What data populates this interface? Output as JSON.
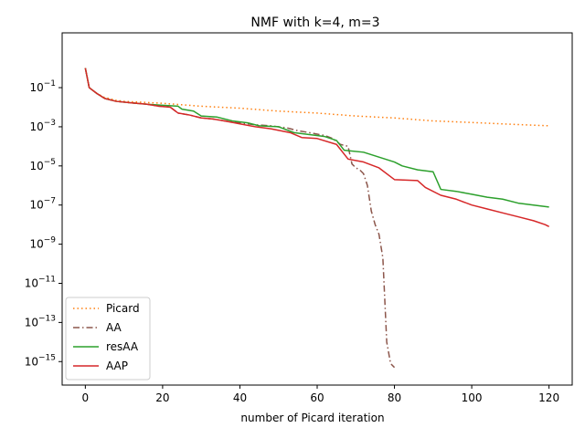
{
  "chart_data": {
    "type": "line",
    "title": "NMF with k=4, m=3",
    "xlabel": "number of Picard iteration",
    "ylabel": "",
    "xlim": [
      -6,
      126
    ],
    "ylim_log10": [
      -16.2,
      1.8
    ],
    "y_scale": "log",
    "grid": false,
    "legend_position": "lower-left",
    "x_ticks": [
      0,
      20,
      40,
      60,
      80,
      100,
      120
    ],
    "y_ticks": [
      {
        "exp": 1,
        "base": "10",
        "power": "−1"
      },
      {
        "exp": 3,
        "base": "10",
        "power": "−3"
      },
      {
        "exp": 5,
        "base": "10",
        "power": "−5"
      },
      {
        "exp": 7,
        "base": "10",
        "power": "−7"
      },
      {
        "exp": 9,
        "base": "10",
        "power": "−9"
      },
      {
        "exp": 11,
        "base": "10",
        "power": "−11"
      },
      {
        "exp": 13,
        "base": "10",
        "power": "−13"
      },
      {
        "exp": 15,
        "base": "10",
        "power": "−15"
      }
    ],
    "series": [
      {
        "name": "Picard",
        "color": "#ff7f0e",
        "dash": "dotted",
        "points": [
          [
            0,
            0.0
          ],
          [
            1,
            -1.0
          ],
          [
            3,
            -1.3
          ],
          [
            5,
            -1.5
          ],
          [
            8,
            -1.65
          ],
          [
            10,
            -1.7
          ],
          [
            20,
            -1.8
          ],
          [
            30,
            -1.95
          ],
          [
            40,
            -2.05
          ],
          [
            50,
            -2.2
          ],
          [
            60,
            -2.3
          ],
          [
            70,
            -2.45
          ],
          [
            80,
            -2.55
          ],
          [
            90,
            -2.7
          ],
          [
            100,
            -2.78
          ],
          [
            110,
            -2.87
          ],
          [
            120,
            -2.95
          ]
        ]
      },
      {
        "name": "AA",
        "color": "#8c564b",
        "dash": "dashdot",
        "points": [
          [
            0,
            0.0
          ],
          [
            1,
            -1.0
          ],
          [
            3,
            -1.3
          ],
          [
            5,
            -1.55
          ],
          [
            8,
            -1.7
          ],
          [
            12,
            -1.78
          ],
          [
            16,
            -1.85
          ],
          [
            19,
            -1.95
          ],
          [
            22,
            -2.0
          ],
          [
            24,
            -2.3
          ],
          [
            27,
            -2.4
          ],
          [
            30,
            -2.55
          ],
          [
            33,
            -2.6
          ],
          [
            36,
            -2.7
          ],
          [
            40,
            -2.8
          ],
          [
            44,
            -2.9
          ],
          [
            48,
            -2.95
          ],
          [
            52,
            -3.05
          ],
          [
            55,
            -3.2
          ],
          [
            58,
            -3.3
          ],
          [
            62,
            -3.45
          ],
          [
            64,
            -3.6
          ],
          [
            66,
            -3.9
          ],
          [
            68,
            -4.0
          ],
          [
            69,
            -4.9
          ],
          [
            70,
            -5.1
          ],
          [
            71,
            -5.2
          ],
          [
            72,
            -5.4
          ],
          [
            73,
            -6.0
          ],
          [
            74,
            -7.3
          ],
          [
            75,
            -8.0
          ],
          [
            76,
            -8.5
          ],
          [
            77,
            -9.7
          ],
          [
            78,
            -14.0
          ],
          [
            79,
            -15.1
          ],
          [
            80,
            -15.3
          ]
        ]
      },
      {
        "name": "resAA",
        "color": "#2ca02c",
        "dash": "solid",
        "points": [
          [
            0,
            0.0
          ],
          [
            1,
            -1.0
          ],
          [
            3,
            -1.3
          ],
          [
            5,
            -1.55
          ],
          [
            8,
            -1.7
          ],
          [
            12,
            -1.78
          ],
          [
            16,
            -1.85
          ],
          [
            20,
            -1.9
          ],
          [
            24,
            -1.95
          ],
          [
            25,
            -2.1
          ],
          [
            28,
            -2.2
          ],
          [
            30,
            -2.45
          ],
          [
            34,
            -2.5
          ],
          [
            38,
            -2.7
          ],
          [
            42,
            -2.8
          ],
          [
            45,
            -2.95
          ],
          [
            50,
            -3.0
          ],
          [
            54,
            -3.3
          ],
          [
            58,
            -3.4
          ],
          [
            62,
            -3.5
          ],
          [
            65,
            -3.7
          ],
          [
            67,
            -4.2
          ],
          [
            72,
            -4.3
          ],
          [
            76,
            -4.55
          ],
          [
            80,
            -4.8
          ],
          [
            82,
            -5.0
          ],
          [
            86,
            -5.2
          ],
          [
            90,
            -5.3
          ],
          [
            92,
            -6.2
          ],
          [
            96,
            -6.3
          ],
          [
            100,
            -6.45
          ],
          [
            104,
            -6.6
          ],
          [
            108,
            -6.7
          ],
          [
            112,
            -6.9
          ],
          [
            116,
            -7.0
          ],
          [
            120,
            -7.1
          ]
        ]
      },
      {
        "name": "AAP",
        "color": "#d62728",
        "dash": "solid",
        "points": [
          [
            0,
            0.0
          ],
          [
            1,
            -1.0
          ],
          [
            3,
            -1.3
          ],
          [
            5,
            -1.55
          ],
          [
            8,
            -1.7
          ],
          [
            12,
            -1.78
          ],
          [
            16,
            -1.85
          ],
          [
            19,
            -1.95
          ],
          [
            22,
            -2.0
          ],
          [
            24,
            -2.3
          ],
          [
            27,
            -2.4
          ],
          [
            30,
            -2.55
          ],
          [
            33,
            -2.6
          ],
          [
            36,
            -2.7
          ],
          [
            40,
            -2.85
          ],
          [
            44,
            -3.0
          ],
          [
            48,
            -3.1
          ],
          [
            53,
            -3.3
          ],
          [
            56,
            -3.55
          ],
          [
            60,
            -3.6
          ],
          [
            65,
            -3.9
          ],
          [
            68,
            -4.65
          ],
          [
            72,
            -4.8
          ],
          [
            76,
            -5.1
          ],
          [
            80,
            -5.7
          ],
          [
            86,
            -5.75
          ],
          [
            88,
            -6.1
          ],
          [
            92,
            -6.5
          ],
          [
            96,
            -6.7
          ],
          [
            100,
            -7.0
          ],
          [
            104,
            -7.2
          ],
          [
            108,
            -7.4
          ],
          [
            112,
            -7.6
          ],
          [
            116,
            -7.8
          ],
          [
            119,
            -8.0
          ],
          [
            120,
            -8.1
          ]
        ]
      }
    ]
  }
}
